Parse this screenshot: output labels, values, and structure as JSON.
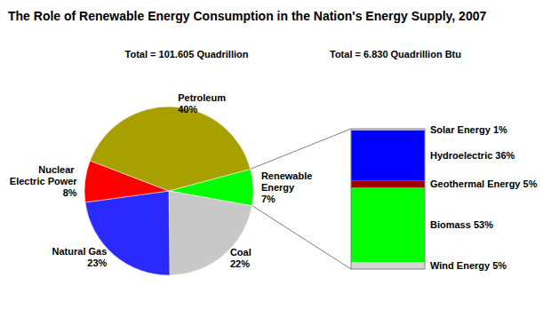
{
  "chart_data": [
    {
      "type": "pie",
      "title": "The Role of Renewable Energy Consumption in the Nation's Energy Supply, 2007",
      "subtitle": "Total = 101.605 Quadrillion",
      "categories": [
        "Renewable Energy",
        "Coal",
        "Natural Gas",
        "Nuclear Electric Power",
        "Petroleum"
      ],
      "values": [
        7,
        22,
        23,
        8,
        40
      ],
      "value_labels": [
        "7%",
        "22%",
        "23%",
        "8%",
        "40%"
      ],
      "colors": [
        "#00ff00",
        "#c8c8c8",
        "#2a2aff",
        "#ff0000",
        "#a89f00"
      ],
      "data_labels": true
    },
    {
      "type": "bar",
      "subtitle": "Total = 6.830 Quadrillion Btu",
      "categories": [
        null
      ],
      "stacked": true,
      "data_labels": true,
      "tick_labels": false,
      "series": [
        {
          "name": "Wind Energy",
          "color": "#d4d4d4",
          "values": [
            5
          ],
          "value_labels": [
            "5%"
          ]
        },
        {
          "name": "Biomass",
          "color": "#00ff00",
          "values": [
            53
          ],
          "value_labels": [
            "53%"
          ]
        },
        {
          "name": "Geothermal Energy",
          "color": "#a00000",
          "values": [
            5
          ],
          "value_labels": [
            "5%"
          ]
        },
        {
          "name": "Hydroelectric",
          "color": "#0000ff",
          "values": [
            36
          ],
          "value_labels": [
            "36%"
          ]
        },
        {
          "name": "Solar Energy",
          "color": "#dcdcdc",
          "values": [
            1
          ],
          "value_labels": [
            "1%"
          ]
        }
      ]
    }
  ]
}
